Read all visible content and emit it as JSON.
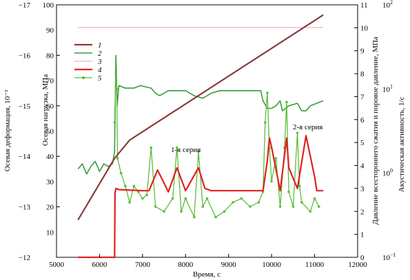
{
  "chart_data": {
    "type": "line",
    "xlabel": "Время, с",
    "x_ticks": [
      "5000",
      "6000",
      "7000",
      "8000",
      "9000",
      "10000",
      "11000",
      "12000"
    ],
    "xlim": [
      5000,
      12000
    ],
    "axes": {
      "strain": {
        "label": "Осевая деформация, 10⁻³",
        "lim": [
          -12,
          -17
        ],
        "ticks": [
          "−12",
          "−13",
          "−14",
          "−15",
          "−16",
          "−17"
        ]
      },
      "load": {
        "label": "Осевая нагрузка, МПа",
        "lim": [
          0,
          100
        ],
        "ticks": [
          "10",
          "20",
          "30",
          "40",
          "50",
          "60",
          "70",
          "80",
          "90",
          "100"
        ]
      },
      "pressure": {
        "label": "Давление всестороннего сжатия и поровое давление, МПа",
        "lim": [
          0,
          11
        ],
        "ticks": [
          "0",
          "1",
          "2",
          "3",
          "4",
          "5",
          "6",
          "7",
          "8",
          "9",
          "10",
          "11"
        ]
      },
      "activity": {
        "label": "Акустическая активность, 1/с",
        "log": true,
        "lim": [
          0.1,
          100
        ],
        "ticks": [
          {
            "base": "10",
            "exp": "−1"
          },
          {
            "base": "10",
            "exp": "0"
          },
          {
            "base": "10",
            "exp": "1"
          },
          {
            "base": "10",
            "exp": "2"
          }
        ]
      }
    },
    "legend_position": "top-left",
    "series": [
      {
        "name": "1",
        "color": "#8b3a3a",
        "axis": "strain",
        "points": [
          [
            5500,
            -12.74
          ],
          [
            6350,
            -13.96
          ],
          [
            6700,
            -14.32
          ],
          [
            11200,
            -16.8
          ]
        ]
      },
      {
        "name": "2",
        "color": "#3a9a3a",
        "axis": "load",
        "points": [
          [
            5500,
            35
          ],
          [
            5600,
            37
          ],
          [
            5700,
            33
          ],
          [
            5800,
            36
          ],
          [
            5900,
            38
          ],
          [
            6000,
            34
          ],
          [
            6100,
            37
          ],
          [
            6200,
            36
          ],
          [
            6300,
            37
          ],
          [
            6350,
            42
          ],
          [
            6380,
            80
          ],
          [
            6410,
            60
          ],
          [
            6450,
            68
          ],
          [
            6600,
            67
          ],
          [
            6800,
            67
          ],
          [
            6950,
            68
          ],
          [
            7200,
            67
          ],
          [
            7300,
            65
          ],
          [
            7400,
            64
          ],
          [
            7600,
            66
          ],
          [
            7800,
            66
          ],
          [
            8000,
            66
          ],
          [
            8200,
            64
          ],
          [
            8400,
            63
          ],
          [
            8600,
            65
          ],
          [
            8800,
            66
          ],
          [
            9000,
            66
          ],
          [
            9200,
            66
          ],
          [
            9400,
            66
          ],
          [
            9600,
            66
          ],
          [
            9750,
            66
          ],
          [
            9800,
            62
          ],
          [
            9900,
            59
          ],
          [
            10000,
            59
          ],
          [
            10100,
            60
          ],
          [
            10200,
            62
          ],
          [
            10250,
            58
          ],
          [
            10400,
            60
          ],
          [
            10600,
            61
          ],
          [
            10700,
            58
          ],
          [
            10800,
            58
          ],
          [
            10900,
            60
          ],
          [
            11200,
            62
          ]
        ]
      },
      {
        "name": "3",
        "color": "#e4b3d4",
        "axis": "load",
        "points": [
          [
            5500,
            91
          ],
          [
            6000,
            91
          ],
          [
            6500,
            91
          ],
          [
            7000,
            91
          ],
          [
            7500,
            91
          ],
          [
            8000,
            91
          ],
          [
            8500,
            91
          ],
          [
            9000,
            91
          ],
          [
            9500,
            91
          ],
          [
            10000,
            91
          ],
          [
            10500,
            91
          ],
          [
            11200,
            91
          ]
        ]
      },
      {
        "name": "4",
        "color": "#e0201f",
        "axis": "pressure",
        "points": [
          [
            5500,
            0
          ],
          [
            6350,
            0
          ],
          [
            6360,
            2.8
          ],
          [
            6380,
            3
          ],
          [
            6450,
            2.95
          ],
          [
            7000,
            2.9
          ],
          [
            7150,
            2.9
          ],
          [
            7350,
            3.8
          ],
          [
            7600,
            2.85
          ],
          [
            7800,
            3.9
          ],
          [
            8000,
            2.9
          ],
          [
            8300,
            3.9
          ],
          [
            8450,
            3
          ],
          [
            8600,
            2.9
          ],
          [
            9000,
            2.9
          ],
          [
            9500,
            2.9
          ],
          [
            9800,
            2.9
          ],
          [
            9900,
            4.2
          ],
          [
            9950,
            5.2
          ],
          [
            10000,
            4.8
          ],
          [
            10200,
            2.9
          ],
          [
            10350,
            5.2
          ],
          [
            10400,
            3.9
          ],
          [
            10600,
            3
          ],
          [
            10800,
            5.3
          ],
          [
            11000,
            3.5
          ],
          [
            11050,
            2.9
          ],
          [
            11200,
            2.9
          ]
        ]
      },
      {
        "name": "5",
        "color": "#5cbd3a",
        "axis": "activity",
        "points": [
          [
            6350,
            4
          ],
          [
            6380,
            15
          ],
          [
            6400,
            10
          ],
          [
            6420,
            1.5
          ],
          [
            6500,
            1
          ],
          [
            6600,
            0.7
          ],
          [
            6700,
            0.45
          ],
          [
            6800,
            0.7
          ],
          [
            6900,
            0.6
          ],
          [
            7000,
            0.5
          ],
          [
            7100,
            0.55
          ],
          [
            7200,
            2
          ],
          [
            7300,
            0.4
          ],
          [
            7500,
            0.35
          ],
          [
            7700,
            0.5
          ],
          [
            7800,
            2
          ],
          [
            7900,
            0.35
          ],
          [
            8000,
            0.5
          ],
          [
            8200,
            0.3
          ],
          [
            8300,
            1.8
          ],
          [
            8400,
            0.4
          ],
          [
            8500,
            0.5
          ],
          [
            8700,
            0.3
          ],
          [
            8900,
            0.35
          ],
          [
            9100,
            0.45
          ],
          [
            9300,
            0.5
          ],
          [
            9500,
            0.4
          ],
          [
            9700,
            0.45
          ],
          [
            9800,
            0.6
          ],
          [
            9850,
            4
          ],
          [
            9900,
            9
          ],
          [
            9950,
            2
          ],
          [
            10000,
            0.8
          ],
          [
            10100,
            1.5
          ],
          [
            10200,
            0.4
          ],
          [
            10300,
            2
          ],
          [
            10350,
            7
          ],
          [
            10400,
            0.6
          ],
          [
            10500,
            0.4
          ],
          [
            10600,
            3
          ],
          [
            10650,
            0.7
          ],
          [
            10700,
            0.45
          ],
          [
            10900,
            0.35
          ],
          [
            11000,
            0.5
          ],
          [
            11100,
            0.4
          ]
        ]
      }
    ],
    "annotations": [
      "1-я серия",
      "2-я серия"
    ]
  }
}
